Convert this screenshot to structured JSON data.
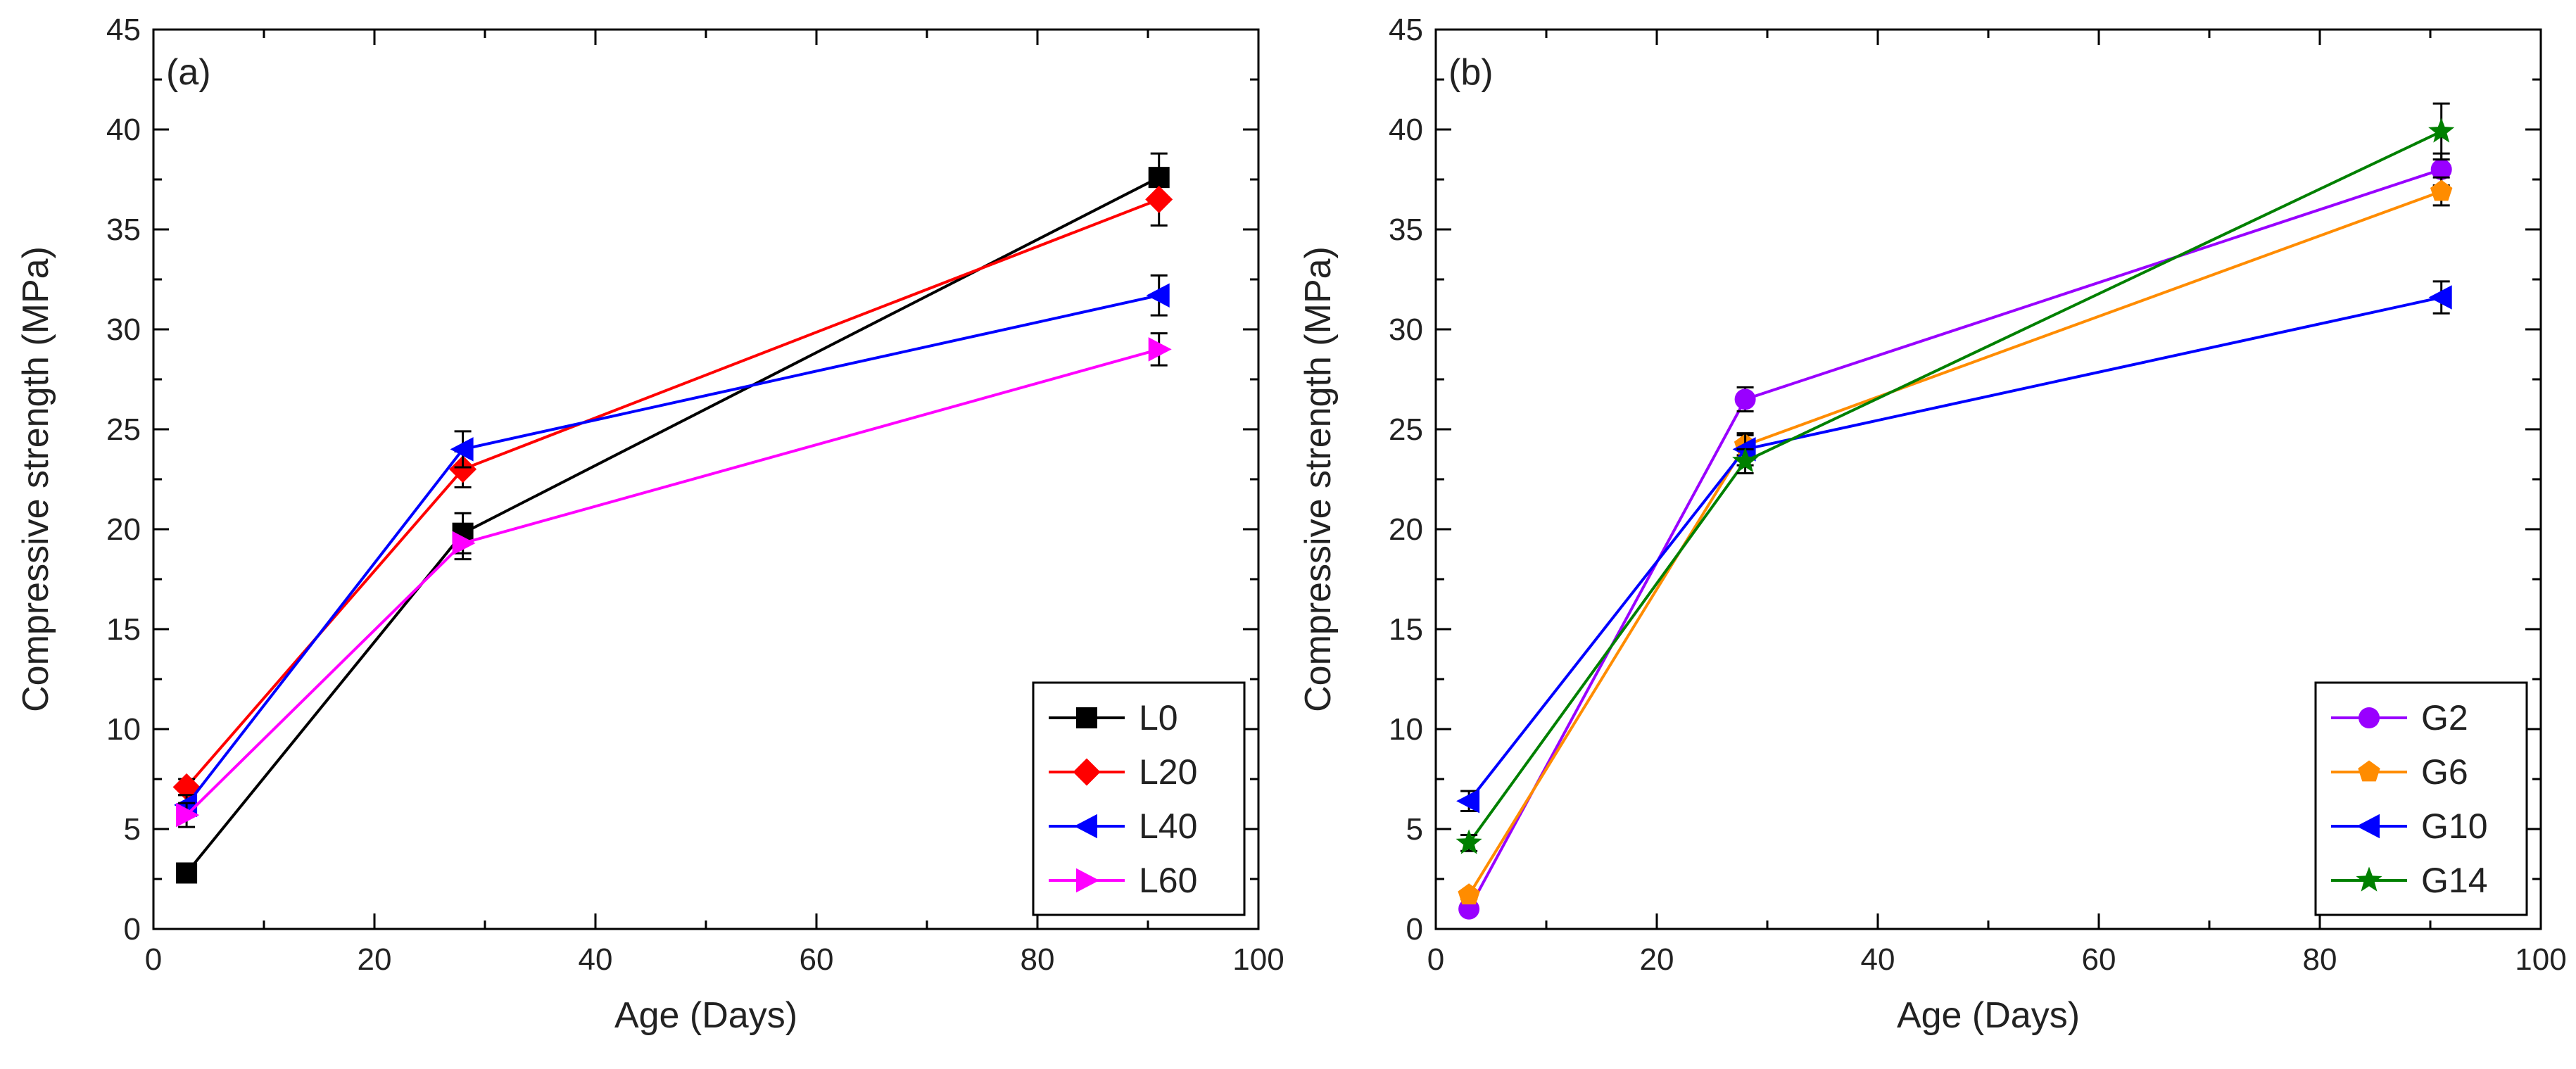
{
  "chart_data": [
    {
      "type": "line",
      "panel_label": "(a)",
      "xlabel": "Age (Days)",
      "ylabel": "Compressive strength (MPa)",
      "xlim": [
        0,
        100
      ],
      "ylim": [
        0,
        45
      ],
      "xticks": [
        0,
        20,
        40,
        60,
        80,
        100
      ],
      "yticks": [
        0,
        5,
        10,
        15,
        20,
        25,
        30,
        35,
        40,
        45
      ],
      "x": [
        3,
        28,
        91
      ],
      "legend_position": "bottom-right",
      "series": [
        {
          "name": "L0",
          "color": "#000000",
          "marker": "square",
          "values": [
            2.8,
            19.8,
            37.6
          ],
          "errors": [
            0.3,
            1.0,
            1.2
          ]
        },
        {
          "name": "L20",
          "color": "#ff0000",
          "marker": "diamond",
          "values": [
            7.1,
            23.0,
            36.5
          ],
          "errors": [
            0.4,
            0.9,
            1.3
          ]
        },
        {
          "name": "L40",
          "color": "#0000ff",
          "marker": "triangle-left",
          "values": [
            6.2,
            24.0,
            31.7
          ],
          "errors": [
            0.5,
            0.9,
            1.0
          ]
        },
        {
          "name": "L60",
          "color": "#ff00ff",
          "marker": "triangle-right",
          "values": [
            5.7,
            19.3,
            29.0
          ],
          "errors": [
            0.6,
            0.8,
            0.8
          ]
        }
      ]
    },
    {
      "type": "line",
      "panel_label": "(b)",
      "xlabel": "Age (Days)",
      "ylabel": "Compressive strength (MPa)",
      "xlim": [
        0,
        100
      ],
      "ylim": [
        0,
        45
      ],
      "xticks": [
        0,
        20,
        40,
        60,
        80,
        100
      ],
      "yticks": [
        0,
        5,
        10,
        15,
        20,
        25,
        30,
        35,
        40,
        45
      ],
      "x": [
        3,
        28,
        91
      ],
      "legend_position": "bottom-right",
      "series": [
        {
          "name": "G2",
          "color": "#9900ff",
          "marker": "circle",
          "values": [
            1.0,
            26.5,
            38.0
          ],
          "errors": [
            0.2,
            0.6,
            0.8
          ]
        },
        {
          "name": "G6",
          "color": "#ff8c00",
          "marker": "pentagon",
          "values": [
            1.7,
            24.2,
            36.9
          ],
          "errors": [
            0.2,
            0.5,
            0.7
          ]
        },
        {
          "name": "G10",
          "color": "#0000ff",
          "marker": "triangle-left",
          "values": [
            6.4,
            24.0,
            31.6
          ],
          "errors": [
            0.5,
            0.8,
            0.8
          ]
        },
        {
          "name": "G14",
          "color": "#008000",
          "marker": "star",
          "values": [
            4.3,
            23.4,
            39.9
          ],
          "errors": [
            0.4,
            0.6,
            1.4
          ]
        }
      ]
    }
  ]
}
